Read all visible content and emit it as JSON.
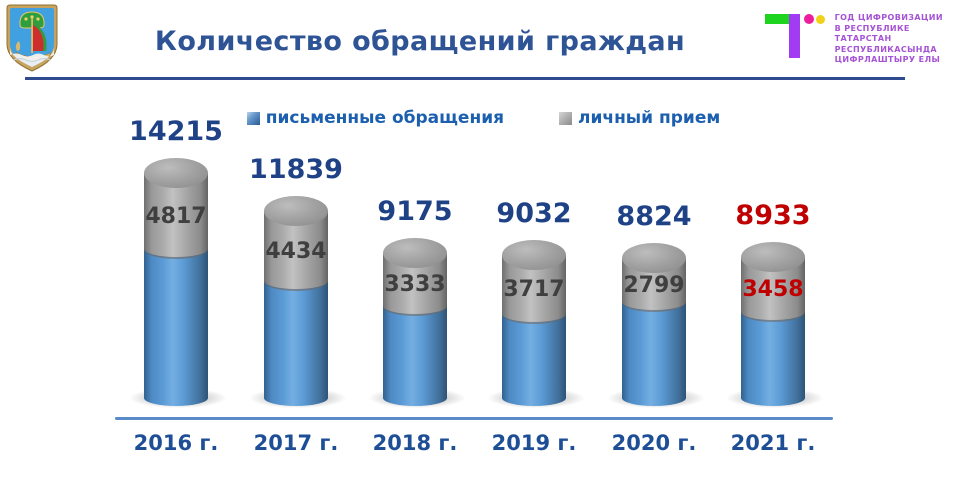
{
  "header": {
    "title": "Количество обращений граждан",
    "coat_of_arms": "naberezhnye-chelny-coat-of-arms",
    "year_logo": {
      "mark": "digital-year-T-logo",
      "lines": [
        "ГОД ЦИФРОВИЗАЦИИ",
        "В РЕСПУБЛИКЕ",
        "ТАТАРСТАН",
        "РЕСПУБЛИКАСЫНДА",
        "ЦИФРЛАШТЫРУ ЕЛЫ"
      ],
      "colors": {
        "green": "#1FD41F",
        "purple": "#A23CF2",
        "pink": "#EE1C9E",
        "yellow": "#F0D018",
        "text": "#A653D6"
      }
    }
  },
  "legend": {
    "items": [
      {
        "label": "письменные обращения",
        "color": "#4F81BD"
      },
      {
        "label": "личный прием",
        "color": "#A6A6A6"
      }
    ]
  },
  "chart_data": {
    "type": "bar",
    "subtype": "3d-stacked-cylinder",
    "title": "Количество обращений граждан",
    "categories": [
      "2016 г.",
      "2017 г.",
      "2018 г.",
      "2019 г.",
      "2020 г.",
      "2021 г."
    ],
    "totals": [
      14215,
      11839,
      9175,
      9032,
      8824,
      8933
    ],
    "series": [
      {
        "name": "письменные обращения",
        "color": "#5B9BD5"
      },
      {
        "name": "личный прием",
        "color": "#A6A6A6",
        "values": [
          4817,
          4434,
          3333,
          3717,
          2799,
          3458
        ]
      }
    ],
    "value_label_color": "#1F4287",
    "segment_label_color": "#3F3F3F",
    "highlight_index": 5,
    "highlight_color": "#C00000",
    "axis_color": "#5A8BC8",
    "legend_position": "top",
    "grid": false
  }
}
